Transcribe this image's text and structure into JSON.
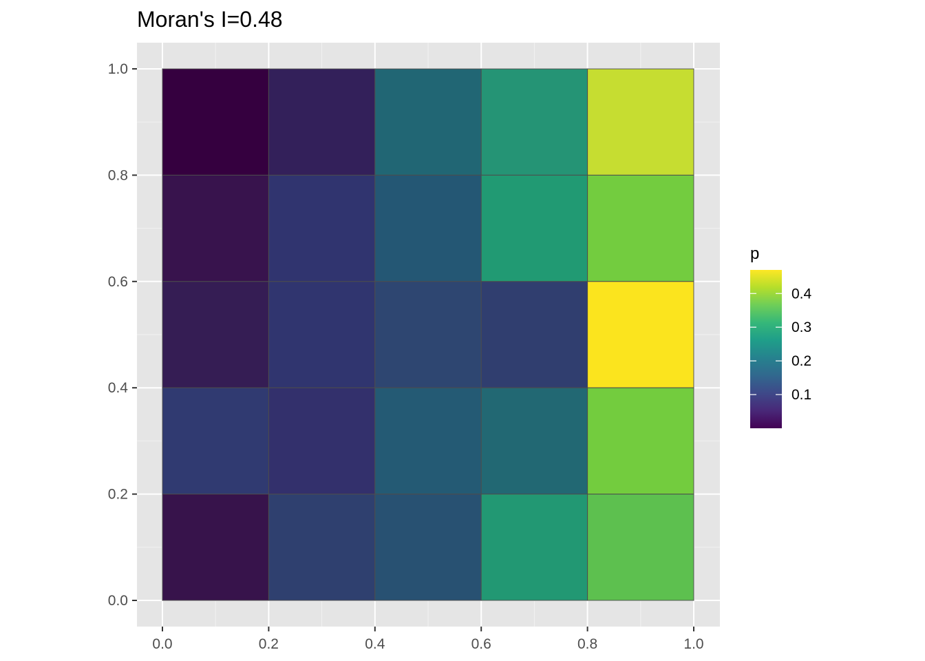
{
  "chart_data": {
    "type": "heatmap",
    "title": "Moran's I=0.48",
    "xlabel": "",
    "ylabel": "",
    "xlim": [
      0,
      1
    ],
    "ylim": [
      0,
      1
    ],
    "x_ticks": [
      "0.0",
      "0.2",
      "0.4",
      "0.6",
      "0.8",
      "1.0"
    ],
    "y_ticks": [
      "0.0",
      "0.2",
      "0.4",
      "0.6",
      "0.8",
      "1.0"
    ],
    "grid": true,
    "cell_size": 0.2,
    "cells": [
      {
        "x": 0.1,
        "y": 0.9,
        "value": 0.0,
        "color": "#35003f"
      },
      {
        "x": 0.3,
        "y": 0.9,
        "value": 0.07,
        "color": "#33205a"
      },
      {
        "x": 0.5,
        "y": 0.9,
        "value": 0.22,
        "color": "#216674"
      },
      {
        "x": 0.7,
        "y": 0.9,
        "value": 0.3,
        "color": "#259475"
      },
      {
        "x": 0.9,
        "y": 0.9,
        "value": 0.43,
        "color": "#c6dd31"
      },
      {
        "x": 0.1,
        "y": 0.7,
        "value": 0.04,
        "color": "#38134d"
      },
      {
        "x": 0.3,
        "y": 0.7,
        "value": 0.12,
        "color": "#30346f"
      },
      {
        "x": 0.5,
        "y": 0.7,
        "value": 0.2,
        "color": "#245774"
      },
      {
        "x": 0.7,
        "y": 0.7,
        "value": 0.3,
        "color": "#219a73"
      },
      {
        "x": 0.9,
        "y": 0.7,
        "value": 0.38,
        "color": "#73cc3f"
      },
      {
        "x": 0.1,
        "y": 0.5,
        "value": 0.06,
        "color": "#351d54"
      },
      {
        "x": 0.3,
        "y": 0.5,
        "value": 0.13,
        "color": "#30356f"
      },
      {
        "x": 0.5,
        "y": 0.5,
        "value": 0.16,
        "color": "#2e4671"
      },
      {
        "x": 0.7,
        "y": 0.5,
        "value": 0.14,
        "color": "#303e6f"
      },
      {
        "x": 0.9,
        "y": 0.5,
        "value": 0.47,
        "color": "#fbe41e"
      },
      {
        "x": 0.1,
        "y": 0.3,
        "value": 0.13,
        "color": "#303a71"
      },
      {
        "x": 0.3,
        "y": 0.3,
        "value": 0.11,
        "color": "#33306c"
      },
      {
        "x": 0.5,
        "y": 0.3,
        "value": 0.2,
        "color": "#245a74"
      },
      {
        "x": 0.7,
        "y": 0.3,
        "value": 0.23,
        "color": "#226873"
      },
      {
        "x": 0.9,
        "y": 0.3,
        "value": 0.38,
        "color": "#73cc3e"
      },
      {
        "x": 0.1,
        "y": 0.1,
        "value": 0.04,
        "color": "#37134b"
      },
      {
        "x": 0.3,
        "y": 0.1,
        "value": 0.15,
        "color": "#2f406f"
      },
      {
        "x": 0.5,
        "y": 0.1,
        "value": 0.18,
        "color": "#285172"
      },
      {
        "x": 0.7,
        "y": 0.1,
        "value": 0.29,
        "color": "#229873"
      },
      {
        "x": 0.9,
        "y": 0.1,
        "value": 0.36,
        "color": "#5dc04f"
      }
    ],
    "legend": {
      "title": "p",
      "position": "right",
      "min": 0.0,
      "max": 0.47,
      "ticks": [
        {
          "value": 0.1,
          "label": "0.1"
        },
        {
          "value": 0.2,
          "label": "0.2"
        },
        {
          "value": 0.3,
          "label": "0.3"
        },
        {
          "value": 0.4,
          "label": "0.4"
        }
      ],
      "colormap": "viridis"
    },
    "colors": {
      "panel_background": "#e5e5e5",
      "grid_major": "#ffffff",
      "grid_minor": "#f2f2f2",
      "tile_border": "#4d4d4d"
    }
  }
}
